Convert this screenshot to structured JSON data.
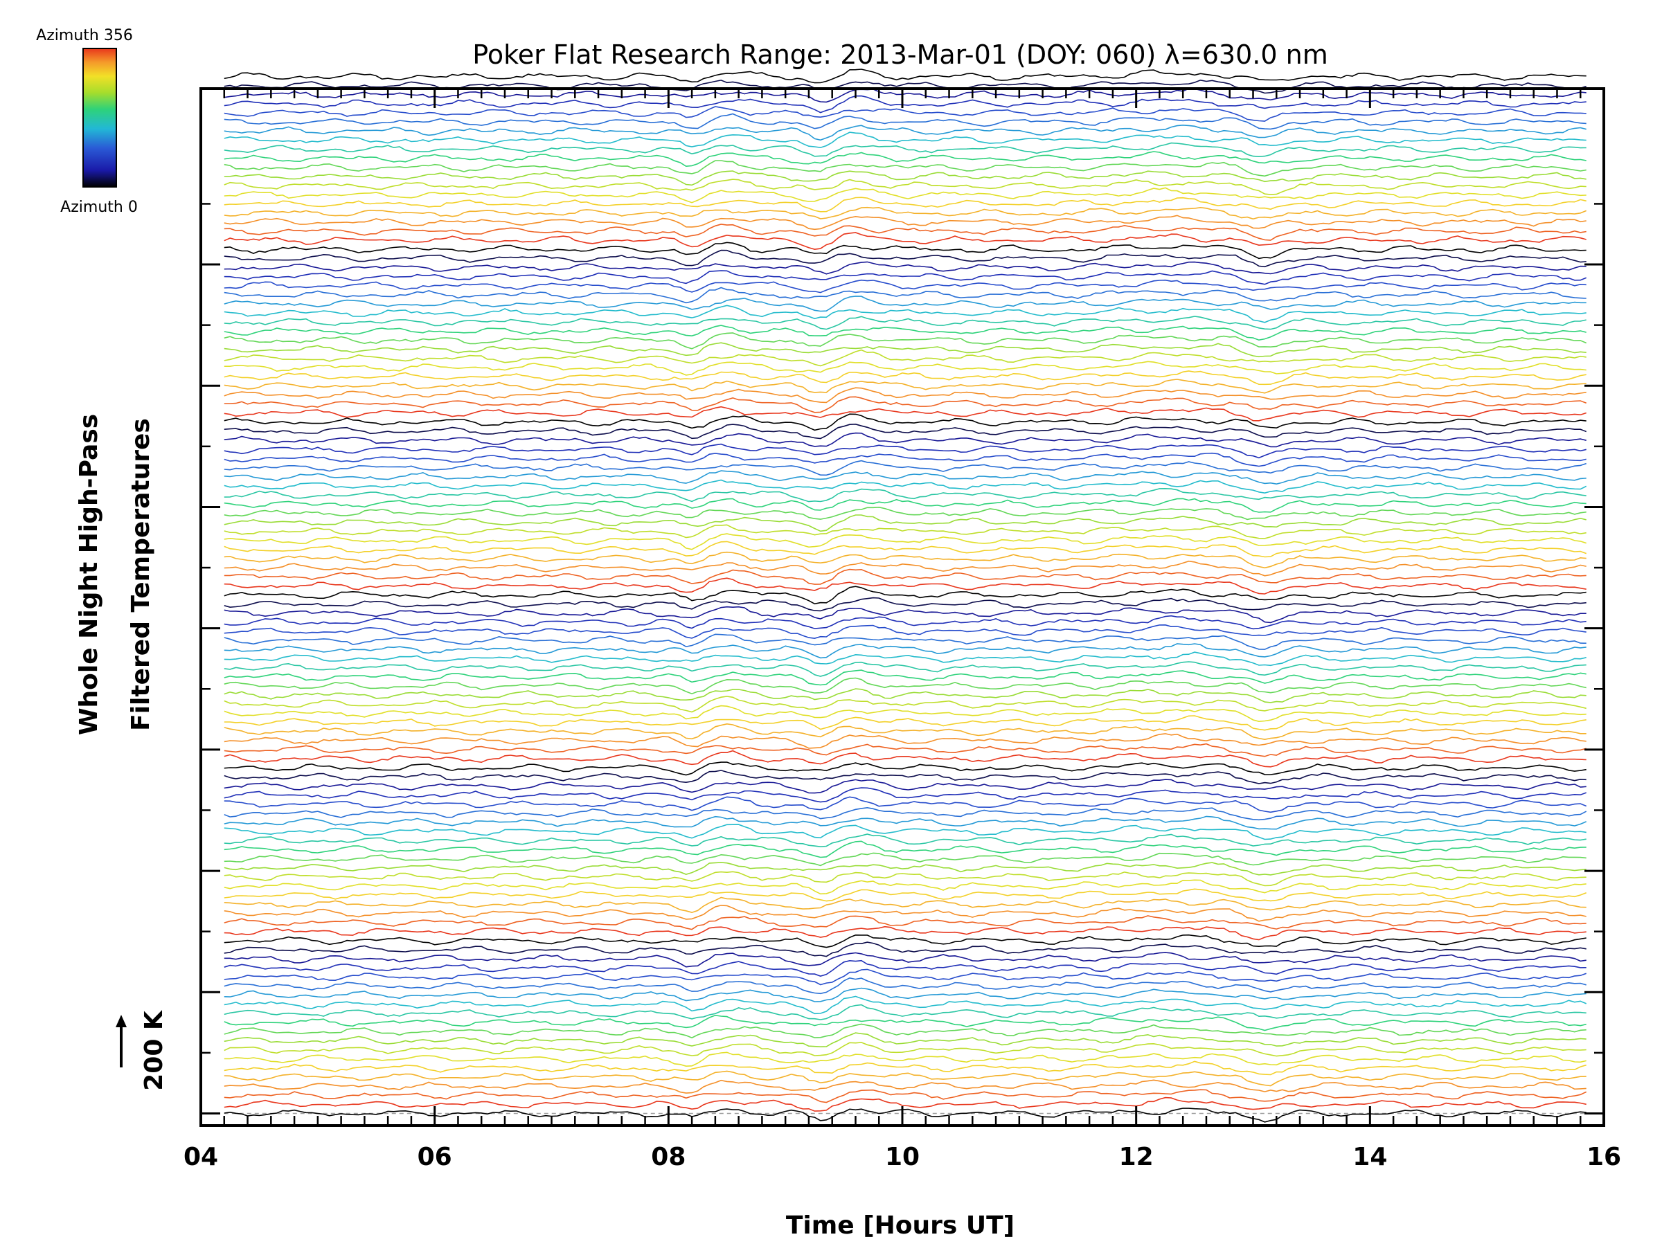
{
  "colors": {
    "background": "#ffffff",
    "axes": "#000000",
    "baseline": "#9e9e9e",
    "colormap": [
      "#000000",
      "#1a1aa8",
      "#2a5ad6",
      "#22b8d6",
      "#2ed27a",
      "#a6dd2c",
      "#f2e027",
      "#f59a2a",
      "#e8361c"
    ]
  },
  "colorbar": {
    "top_label": "Azimuth 356",
    "bottom_label": "Azimuth 0"
  },
  "scale_marker": {
    "label": "200 K",
    "arrow_icon": "up-arrow-icon"
  },
  "chart_data": {
    "type": "line",
    "title": "Poker Flat Research Range: 2013-Mar-01 (DOY: 060) λ=630.0 nm",
    "xlabel": "Time [Hours UT]",
    "ylabel_line1": "Whole Night High-Pass",
    "ylabel_line2": "Filtered Temperatures",
    "xlim": [
      4,
      16
    ],
    "x_ticks": [
      "04",
      "06",
      "08",
      "10",
      "12",
      "14",
      "16"
    ],
    "x_start": 4.2,
    "x_end": 15.85,
    "series_count": 115,
    "series_spacing_K": 15,
    "y_ticks_K": [
      0,
      200,
      400,
      600,
      800,
      1000,
      1200,
      1400
    ],
    "ylim": [
      -20,
      1690
    ],
    "azimuth_range_deg": [
      0,
      356
    ],
    "baseline_K": 0,
    "grid": false,
    "legend": "colorbar top-left"
  }
}
